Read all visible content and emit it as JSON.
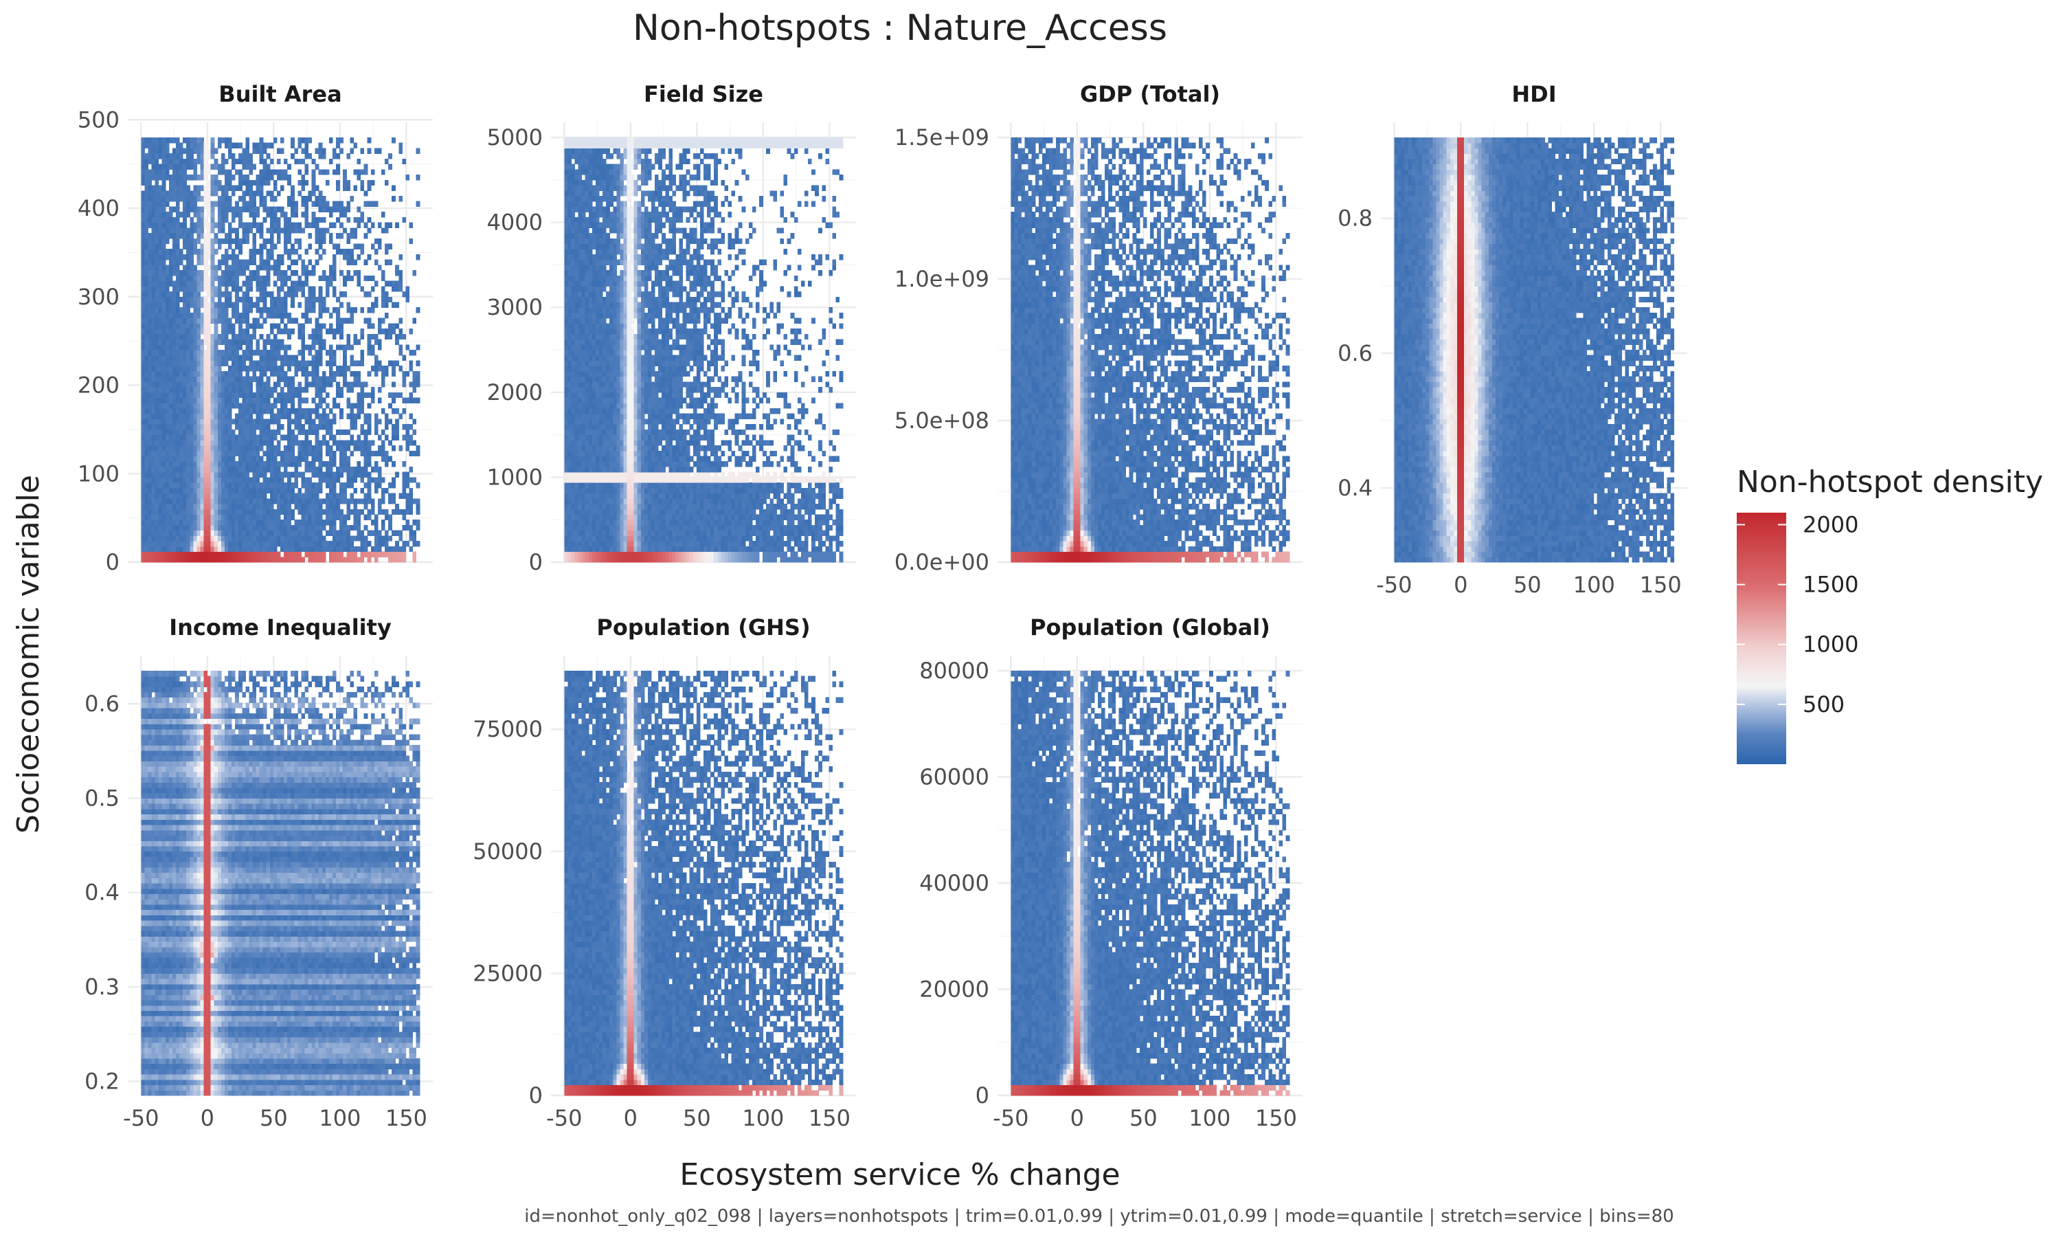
{
  "title": "Non-hotspots : Nature_Access",
  "caption": "id=nonhot_only_q02_098 | layers=nonhotspots | trim=0.01,0.99 | ytrim=0.01,0.99 | mode=quantile | stretch=service | bins=80",
  "xlabel": "Ecosystem service % change",
  "ylabel": "Socioeconomic variable",
  "legend": {
    "title": "Non-hotspot density",
    "breaks": [
      2000,
      1500,
      1000,
      500
    ],
    "break_labels": [
      "2000",
      "1500",
      "1000",
      "500"
    ],
    "range": [
      0,
      2100
    ],
    "colors": {
      "low": "#2b65ad",
      "mid": "#f5f5f5",
      "high": "#c1272d"
    }
  },
  "chart_data": [
    {
      "type": "heatmap",
      "panel": "Built Area",
      "xlim": [
        -50,
        160
      ],
      "ylim": [
        0,
        480
      ],
      "xticks": [
        -50,
        0,
        50,
        100,
        150
      ],
      "xtick_labels": [
        "-50",
        "0",
        "50",
        "100",
        "150"
      ],
      "yticks": [
        0,
        100,
        200,
        300,
        400,
        500
      ],
      "ytick_labels": [
        "0",
        "100",
        "200",
        "300",
        "400",
        "500"
      ],
      "pattern": "spike"
    },
    {
      "type": "heatmap",
      "panel": "Field Size",
      "xlim": [
        -50,
        160
      ],
      "ylim": [
        0,
        5000
      ],
      "xticks": [
        -50,
        0,
        50,
        100,
        150
      ],
      "xtick_labels": [
        "-50",
        "0",
        "50",
        "100",
        "150"
      ],
      "yticks": [
        0,
        1000,
        2000,
        3000,
        4000,
        5000
      ],
      "ytick_labels": [
        "0",
        "1000",
        "2000",
        "3000",
        "4000",
        "5000"
      ],
      "pattern": "field"
    },
    {
      "type": "heatmap",
      "panel": "GDP (Total)",
      "xlim": [
        -50,
        160
      ],
      "ylim": [
        0,
        1500000000
      ],
      "xticks": [
        -50,
        0,
        50,
        100,
        150
      ],
      "xtick_labels": [
        "-50",
        "0",
        "50",
        "100",
        "150"
      ],
      "yticks": [
        0,
        500000000,
        1000000000,
        1500000000
      ],
      "ytick_labels": [
        "0.0e+00",
        "5.0e+08",
        "1.0e+09",
        "1.5e+09"
      ],
      "pattern": "spike"
    },
    {
      "type": "heatmap",
      "panel": "HDI",
      "xlim": [
        -50,
        160
      ],
      "ylim": [
        0.29,
        0.92
      ],
      "xticks": [
        -50,
        0,
        50,
        100,
        150
      ],
      "xtick_labels": [
        "-50",
        "0",
        "50",
        "100",
        "150"
      ],
      "yticks": [
        0.4,
        0.6,
        0.8
      ],
      "ytick_labels": [
        "0.4",
        "0.6",
        "0.8"
      ],
      "pattern": "hdi"
    },
    {
      "type": "heatmap",
      "panel": "Income Inequality",
      "xlim": [
        -50,
        160
      ],
      "ylim": [
        0.185,
        0.635
      ],
      "xticks": [
        -50,
        0,
        50,
        100,
        150
      ],
      "xtick_labels": [
        "-50",
        "0",
        "50",
        "100",
        "150"
      ],
      "yticks": [
        0.2,
        0.3,
        0.4,
        0.5,
        0.6
      ],
      "ytick_labels": [
        "0.2",
        "0.3",
        "0.4",
        "0.5",
        "0.6"
      ],
      "pattern": "income"
    },
    {
      "type": "heatmap",
      "panel": "Population (GHS)",
      "xlim": [
        -50,
        160
      ],
      "ylim": [
        0,
        87000
      ],
      "xticks": [
        -50,
        0,
        50,
        100,
        150
      ],
      "xtick_labels": [
        "-50",
        "0",
        "50",
        "100",
        "150"
      ],
      "yticks": [
        0,
        25000,
        50000,
        75000
      ],
      "ytick_labels": [
        "0",
        "25000",
        "50000",
        "75000"
      ],
      "pattern": "pop"
    },
    {
      "type": "heatmap",
      "panel": "Population (Global)",
      "xlim": [
        -50,
        160
      ],
      "ylim": [
        0,
        80000
      ],
      "xticks": [
        -50,
        0,
        50,
        100,
        150
      ],
      "xtick_labels": [
        "-50",
        "0",
        "50",
        "100",
        "150"
      ],
      "yticks": [
        0,
        20000,
        40000,
        60000,
        80000
      ],
      "ytick_labels": [
        "0",
        "20000",
        "40000",
        "60000",
        "80000"
      ],
      "pattern": "pop"
    }
  ]
}
